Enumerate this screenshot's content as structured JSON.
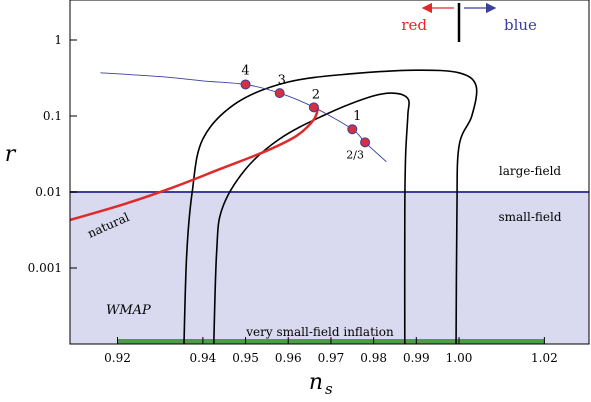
{
  "chart_data": {
    "type": "line",
    "title": "",
    "xlabel": "n",
    "xlabel_sub": "s",
    "ylabel": "r",
    "xlim": [
      0.9,
      1.03
    ],
    "ylim_log": [
      7e-05,
      10
    ],
    "y_scale": "log",
    "x_ticks": [
      {
        "v": 0.92,
        "label": "0.92"
      },
      {
        "v": 0.94,
        "label": "0.94"
      },
      {
        "v": 0.95,
        "label": "0.95"
      },
      {
        "v": 0.96,
        "label": "0.96"
      },
      {
        "v": 0.97,
        "label": "0.97"
      },
      {
        "v": 0.98,
        "label": "0.98"
      },
      {
        "v": 0.99,
        "label": "0.99"
      },
      {
        "v": 1.0,
        "label": "1.00"
      },
      {
        "v": 1.02,
        "label": "1.02"
      }
    ],
    "y_ticks": [
      {
        "v": 1,
        "label": "1"
      },
      {
        "v": 0.1,
        "label": "0.1"
      },
      {
        "v": 0.01,
        "label": "0.01"
      },
      {
        "v": 0.001,
        "label": "0.001"
      }
    ],
    "regions": {
      "small_field_boundary_r": 0.01,
      "small_field_fill": "#d9d9ef",
      "boundary_color": "#3b3f9e",
      "large_field_label": "large-field",
      "small_field_label": "small-field",
      "very_small_field_label": "very small-field inflation",
      "very_small_field_bar": {
        "x_from": 0.92,
        "x_to": 1.02,
        "color": "#4f9a4f"
      }
    },
    "red_blue": {
      "divider_x": 1.0,
      "red_label": "red",
      "blue_label": "blue",
      "red_color": "#e02a2a",
      "blue_color": "#3b3f9e"
    },
    "series": [
      {
        "name": "natural",
        "color": "#e02a2a",
        "points": [
          [
            0.9,
            0.0031
          ],
          [
            0.92,
            0.0065
          ],
          [
            0.933,
            0.0115
          ],
          [
            0.944,
            0.02
          ],
          [
            0.955,
            0.035
          ],
          [
            0.962,
            0.055
          ],
          [
            0.966,
            0.09
          ],
          [
            0.967,
            0.13
          ]
        ]
      }
    ],
    "power_law": {
      "color": "#3b3f9e",
      "line": [
        [
          0.916,
          0.37
        ],
        [
          0.93,
          0.33
        ],
        [
          0.94,
          0.29
        ],
        [
          0.95,
          0.26
        ],
        [
          0.958,
          0.2
        ],
        [
          0.966,
          0.13
        ],
        [
          0.975,
          0.067
        ],
        [
          0.978,
          0.045
        ],
        [
          0.983,
          0.025
        ]
      ],
      "points": [
        {
          "x": 0.95,
          "r": 0.26,
          "label": "4"
        },
        {
          "x": 0.958,
          "r": 0.2,
          "label": "3"
        },
        {
          "x": 0.966,
          "r": 0.13,
          "label": "2"
        },
        {
          "x": 0.975,
          "r": 0.067,
          "label": "1"
        },
        {
          "x": 0.978,
          "r": 0.045,
          "label": "2/3"
        }
      ],
      "marker_fill": "#d43040",
      "marker_stroke": "#3b3f9e"
    },
    "contours": {
      "label": "WMAP",
      "inner": [
        [
          0.9425,
          7e-05
        ],
        [
          0.9432,
          0.0015
        ],
        [
          0.9445,
          0.006
        ],
        [
          0.95,
          0.02
        ],
        [
          0.958,
          0.05
        ],
        [
          0.968,
          0.1
        ],
        [
          0.978,
          0.17
        ],
        [
          0.984,
          0.2
        ],
        [
          0.988,
          0.17
        ],
        [
          0.988,
          0.1
        ],
        [
          0.9875,
          0.03
        ],
        [
          0.9873,
          0.005
        ],
        [
          0.9873,
          7e-05
        ]
      ],
      "outer": [
        [
          0.9355,
          7e-05
        ],
        [
          0.9362,
          0.0015
        ],
        [
          0.9375,
          0.01
        ],
        [
          0.94,
          0.05
        ],
        [
          0.948,
          0.15
        ],
        [
          0.96,
          0.28
        ],
        [
          0.975,
          0.36
        ],
        [
          0.99,
          0.4
        ],
        [
          1.0,
          0.37
        ],
        [
          1.004,
          0.25
        ],
        [
          1.003,
          0.1
        ],
        [
          1.0,
          0.04
        ],
        [
          0.9995,
          0.005
        ],
        [
          0.9993,
          7e-05
        ]
      ]
    }
  }
}
